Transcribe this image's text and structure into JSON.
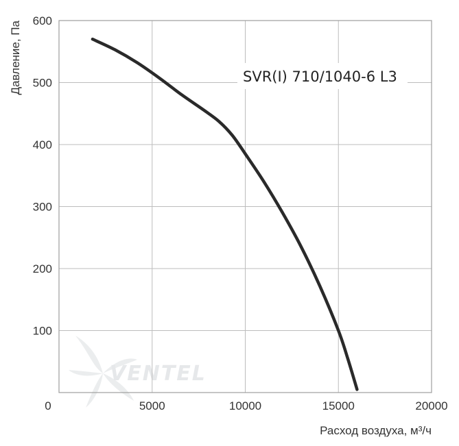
{
  "chart_data": {
    "type": "line",
    "title": "",
    "xlabel": "Расход воздуха, м³/ч",
    "ylabel": "Давление, Па",
    "xlim": [
      0,
      20000
    ],
    "ylim": [
      0,
      600
    ],
    "x_ticks": [
      "0",
      "5000",
      "10000",
      "15000",
      "20000"
    ],
    "y_ticks": [
      "100",
      "200",
      "300",
      "400",
      "500",
      "600"
    ],
    "grid": true,
    "series": [
      {
        "name": "SVR(I) 710/1040-6 L3",
        "color": "#2a2a2a",
        "x": [
          1800,
          3000,
          4200,
          5400,
          6600,
          7800,
          8600,
          9300,
          10000,
          11000,
          12000,
          13000,
          14000,
          15000,
          15500,
          16000
        ],
        "y": [
          570,
          553,
          532,
          507,
          480,
          455,
          437,
          415,
          385,
          340,
          290,
          235,
          172,
          100,
          55,
          5
        ]
      }
    ],
    "watermark": "VENTEL"
  }
}
